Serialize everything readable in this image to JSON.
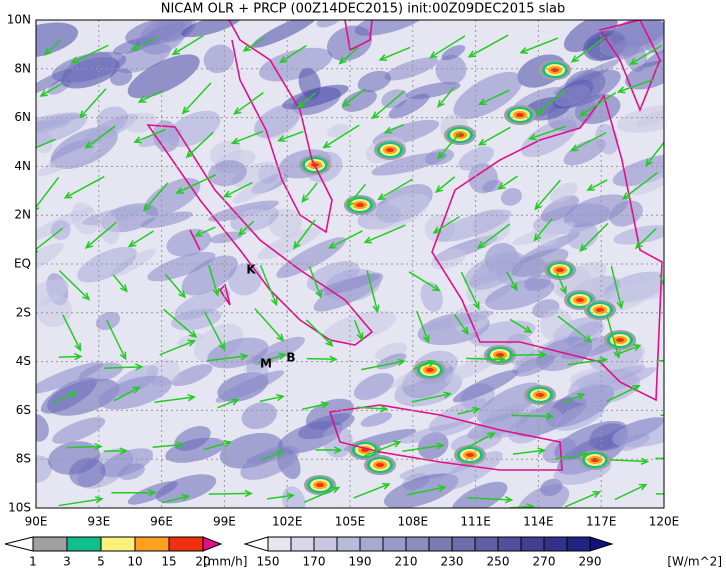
{
  "header": {
    "title": "NICAM OLR + PRCP (00Z14DEC2015) init:00Z09DEC2015 slab"
  },
  "map": {
    "lat_labels": [
      "10N",
      "8N",
      "6N",
      "4N",
      "2N",
      "EQ",
      "2S",
      "4S",
      "6S",
      "8S",
      "10S"
    ],
    "lon_labels": [
      "90E",
      "93E",
      "96E",
      "99E",
      "102E",
      "105E",
      "108E",
      "111E",
      "114E",
      "117E",
      "120E"
    ],
    "markers": [
      "K",
      "M",
      "B"
    ]
  },
  "legend": {
    "precip": {
      "labels": [
        "1",
        "3",
        "5",
        "10",
        "15",
        "20"
      ],
      "unit": "[mm/h]",
      "colors": [
        "#ffffff",
        "#a0a0a0",
        "#10c08c",
        "#fff080",
        "#ffa020",
        "#f03010",
        "#e0108a"
      ]
    },
    "olr": {
      "labels": [
        "150",
        "170",
        "190",
        "210",
        "230",
        "250",
        "270",
        "290"
      ],
      "unit": "[W/m^2]"
    }
  }
}
